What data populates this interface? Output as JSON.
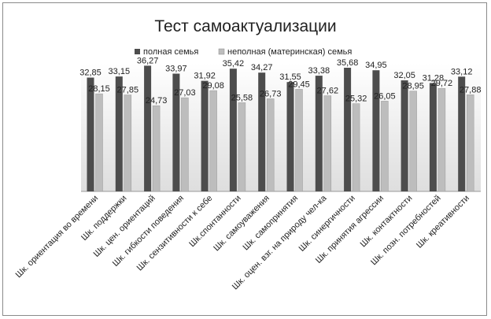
{
  "chart_data": {
    "type": "bar",
    "title": "Тест самоактуализации",
    "xlabel": "",
    "ylabel": "",
    "ylim": [
      0,
      40
    ],
    "grid": false,
    "legend_position": "top",
    "categories": [
      "Шк. ориентация во времени",
      "Шк. поддержки",
      "Шк. цен. ориентаций",
      "Шк. гибкости поведения",
      "Шк. сензитивности к себе",
      "Шк.спонтанности",
      "Шк. самоуважения",
      "Шк. самопринятия",
      "Шк. оцен. взг. на природу чел-ка",
      "Шк. синергичности",
      "Шк. принятия агрессии",
      "Шк. контактности",
      "Шк. позн. потребностей",
      "Шк. креативности"
    ],
    "series": [
      {
        "name": "полная семья",
        "color": "#4d4d4d",
        "values": [
          32.85,
          33.15,
          36.27,
          33.97,
          31.92,
          35.42,
          34.27,
          31.55,
          33.38,
          35.68,
          34.95,
          32.05,
          31.28,
          33.12
        ],
        "labels": [
          "32,85",
          "33,15",
          "36,27",
          "33,97",
          "31,92",
          "35,42",
          "34,27",
          "31,55",
          "33,38",
          "35,68",
          "34,95",
          "32,05",
          "31,28",
          "33,12"
        ]
      },
      {
        "name": "неполная (материнская) семья",
        "color": "#bdbdbd",
        "values": [
          28.15,
          27.85,
          24.73,
          27.03,
          29.08,
          25.58,
          26.73,
          29.45,
          27.62,
          25.32,
          26.05,
          28.95,
          29.72,
          27.88
        ],
        "labels": [
          "28,15",
          "27,85",
          "24,73",
          "27,03",
          "29,08",
          "25,58",
          "26,73",
          "29,45",
          "27,62",
          "25,32",
          "26,05",
          "28,95",
          "29,72",
          "27,88"
        ]
      }
    ]
  }
}
